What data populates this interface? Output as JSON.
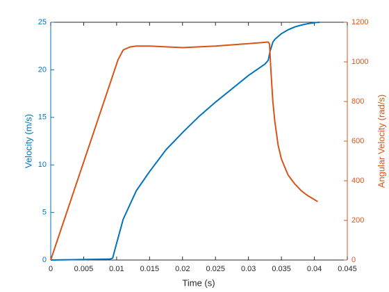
{
  "chart_data": {
    "type": "line",
    "xlabel": "Time (s)",
    "ylabel": "Velocity (m/s)",
    "y2label": "Angular Velocity (rad/s)",
    "xlim": [
      0,
      0.045
    ],
    "xticks": [
      0,
      0.005,
      0.01,
      0.015,
      0.02,
      0.025,
      0.03,
      0.035,
      0.04,
      0.045
    ],
    "ylim": [
      0,
      25
    ],
    "yticks": [
      0,
      5,
      10,
      15,
      20,
      25
    ],
    "y2lim": [
      0,
      1200
    ],
    "y2ticks": [
      0,
      200,
      400,
      600,
      800,
      1000,
      1200
    ],
    "ycolor": "#0072bd",
    "y2color": "#d95319",
    "series": [
      {
        "color": "#0072bd",
        "axis": "y",
        "x": [
          0,
          0.009,
          0.0094,
          0.0097,
          0.011,
          0.013,
          0.015,
          0.0175,
          0.02,
          0.0225,
          0.025,
          0.0275,
          0.03,
          0.0325,
          0.033,
          0.0333,
          0.0337,
          0.034,
          0.035,
          0.036,
          0.037,
          0.038,
          0.039,
          0.04,
          0.0408
        ],
        "values": [
          0,
          0.1,
          0.2,
          1.0,
          4.3,
          7.3,
          9.3,
          11.6,
          13.4,
          15.1,
          16.6,
          18.0,
          19.4,
          20.6,
          21.0,
          22.0,
          22.9,
          23.2,
          23.8,
          24.2,
          24.5,
          24.7,
          24.85,
          24.95,
          25.0
        ]
      },
      {
        "color": "#d95319",
        "axis": "y2",
        "x": [
          0,
          0.0095,
          0.0102,
          0.011,
          0.012,
          0.013,
          0.015,
          0.02,
          0.025,
          0.03,
          0.033,
          0.0332,
          0.0334,
          0.0337,
          0.034,
          0.0345,
          0.035,
          0.036,
          0.037,
          0.038,
          0.039,
          0.0405
        ],
        "values": [
          0,
          940,
          1010,
          1060,
          1075,
          1080,
          1080,
          1072,
          1080,
          1092,
          1100,
          1090,
          960,
          800,
          700,
          580,
          510,
          430,
          385,
          350,
          325,
          295
        ]
      }
    ]
  }
}
